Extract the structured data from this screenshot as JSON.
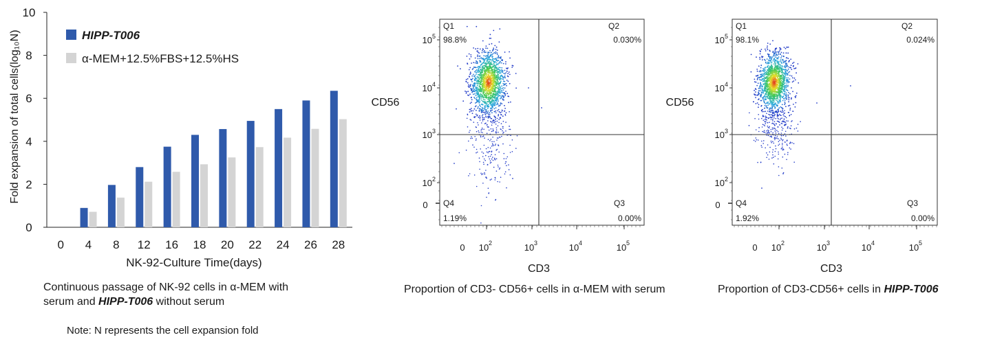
{
  "bar_chart": {
    "ylabel": "Fold expansion of total cells(log₁₀N)",
    "xlabel": "NK-92-Culture Time(days)"
  },
  "chart_data": [
    {
      "type": "bar",
      "categories": [
        "0",
        "4",
        "8",
        "12",
        "16",
        "18",
        "20",
        "22",
        "24",
        "26",
        "28"
      ],
      "series": [
        {
          "name": "HIPP-T006",
          "values": [
            0,
            0.9,
            1.97,
            2.8,
            3.75,
            4.3,
            4.57,
            4.95,
            5.5,
            5.9,
            6.35
          ],
          "color": "#2f5aab"
        },
        {
          "name": "α-MEM+12.5%FBS+12.5%HS",
          "values": [
            0,
            0.72,
            1.38,
            2.12,
            2.58,
            2.93,
            3.25,
            3.73,
            4.17,
            4.58,
            5.03
          ],
          "color": "#d4d4d4"
        }
      ],
      "ylim": [
        0,
        10
      ],
      "yticks": [
        "0",
        "2",
        "4",
        "6",
        "8",
        "10"
      ],
      "grid": false,
      "legend": "top-left"
    },
    {
      "type": "scatter",
      "panel": "alpha-mem",
      "xlabel": "CD3",
      "ylabel": "CD56",
      "quadrants": [
        {
          "name": "Q1",
          "value": "98.8%"
        },
        {
          "name": "Q2",
          "value": "0.030%"
        },
        {
          "name": "Q3",
          "value": "0.00%"
        },
        {
          "name": "Q4",
          "value": "1.19%"
        }
      ]
    },
    {
      "type": "scatter",
      "panel": "hipp",
      "xlabel": "CD3",
      "ylabel": "CD56",
      "quadrants": [
        {
          "name": "Q1",
          "value": "98.1%"
        },
        {
          "name": "Q2",
          "value": "0.024%"
        },
        {
          "name": "Q3",
          "value": "0.00%"
        },
        {
          "name": "Q4",
          "value": "1.92%"
        }
      ]
    }
  ],
  "captions": {
    "bar_line1": "Continuous passage of NK-92 cells in α-MEM with",
    "bar_line2_pre": "serum and ",
    "bar_line2_em": "HIPP-T006",
    "bar_line2_post": " without serum",
    "note": "Note: N represents the cell expansion fold",
    "flow1": "Proportion of CD3- CD56+ cells in α-MEM with serum",
    "flow2_pre": "Proportion of CD3-CD56+ cells in ",
    "flow2_em": "HIPP-T006"
  }
}
